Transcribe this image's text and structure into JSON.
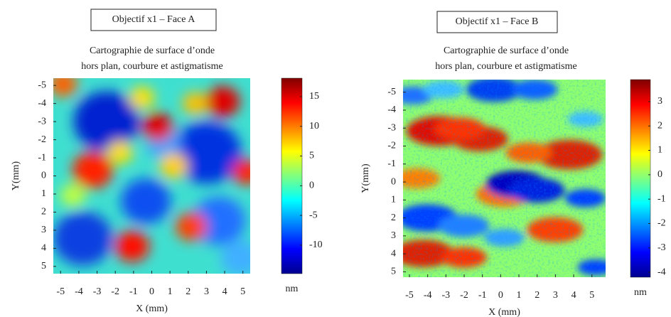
{
  "chart_data": [
    {
      "type": "heatmap",
      "label": "Objectif x1 – Face A",
      "title": "Cartographie de surface d’onde",
      "subtitle": "hors plan, courbure et astigmatisme",
      "xlabel": "X (mm)",
      "ylabel": "Y(mm)",
      "xlim": [
        -5.4,
        5.4
      ],
      "xticks": [
        -5,
        -4,
        -3,
        -2,
        -1,
        0,
        1,
        2,
        3,
        4,
        5
      ],
      "ylim": [
        -5.4,
        5.4
      ],
      "y_inverted": true,
      "yticks": [
        -5,
        -4,
        -3,
        -2,
        -1,
        0,
        1,
        2,
        3,
        4,
        5
      ],
      "clim": [
        -14.8,
        18.1
      ],
      "cticks": [
        -10,
        -5,
        0,
        5,
        10,
        15
      ],
      "clabel": "nm",
      "colormap": "jet"
    },
    {
      "type": "heatmap",
      "label": "Objectif x1 – Face B",
      "title": "Cartographie de surface d’onde",
      "subtitle": "hors plan, courbure et astigmatisme",
      "xlabel": "X (mm)",
      "ylabel": "Y(mm)",
      "xlim": [
        -5.35,
        5.75
      ],
      "xticks": [
        -5,
        -4,
        -3,
        -2,
        -1,
        0,
        1,
        2,
        3,
        4,
        5
      ],
      "ylim": [
        -5.7,
        5.3
      ],
      "y_inverted": true,
      "yticks": [
        -5,
        -4,
        -3,
        -2,
        -1,
        0,
        1,
        2,
        3,
        4,
        5
      ],
      "clim": [
        -4.2,
        3.9
      ],
      "cticks": [
        -4,
        -3,
        -2,
        -1,
        0,
        1,
        2,
        3
      ],
      "clabel": "nm",
      "colormap": "jet"
    }
  ]
}
